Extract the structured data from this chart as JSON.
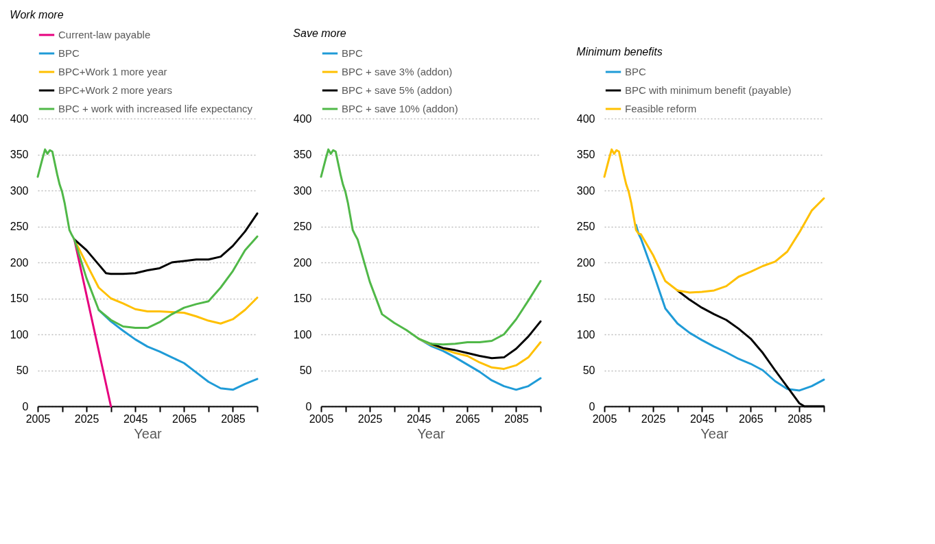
{
  "chart_data": [
    {
      "type": "line",
      "title": "Work more",
      "xlabel": "Year",
      "xlim": [
        2005,
        2095
      ],
      "xticks": [
        2005,
        {
          "value": 2015,
          "label": null
        },
        2025,
        {
          "value": 2035,
          "label": null
        },
        2045,
        {
          "value": 2055,
          "label": null
        },
        2065,
        {
          "value": 2075,
          "label": null
        },
        2085,
        {
          "value": 2095,
          "label": null
        }
      ],
      "ylim": [
        0,
        400
      ],
      "yticks": [
        0,
        50,
        100,
        150,
        200,
        250,
        300,
        350,
        400
      ],
      "grid": "y",
      "legend": "top",
      "marker": "none",
      "line_style": "solid",
      "series": [
        {
          "name": "Current-law payable",
          "color": "#e6007e",
          "x": [
            2020,
            2035
          ],
          "values": [
            232,
            0
          ]
        },
        {
          "name": "BPC",
          "color": "#1f9bd7",
          "x": [
            2030,
            2035,
            2040,
            2045,
            2050,
            2055,
            2060,
            2065,
            2070,
            2075,
            2080,
            2085,
            2090,
            2095
          ],
          "values": [
            134,
            118,
            105,
            93,
            83,
            76,
            68,
            60,
            47,
            34,
            25,
            23,
            31,
            38
          ]
        },
        {
          "name": "BPC+Work 1 more year",
          "color": "#ffc000",
          "x": [
            2020,
            2025,
            2030,
            2035,
            2040,
            2045,
            2050,
            2055,
            2060,
            2065,
            2070,
            2075,
            2080,
            2085,
            2090,
            2095
          ],
          "values": [
            232,
            198,
            165,
            150,
            143,
            135,
            132,
            132,
            131,
            130,
            125,
            119,
            115,
            121,
            134,
            151
          ]
        },
        {
          "name": "BPC+Work 2 more years",
          "color": "#000000",
          "x": [
            2020,
            2025,
            2030,
            2033,
            2035,
            2040,
            2045,
            2050,
            2055,
            2060,
            2065,
            2070,
            2075,
            2080,
            2085,
            2090,
            2095
          ],
          "values": [
            232,
            217,
            197,
            185,
            184,
            184,
            185,
            189,
            192,
            200,
            202,
            204,
            204,
            208,
            223,
            243,
            268
          ]
        },
        {
          "name": "BPC + work with increased life expectancy",
          "color": "#50b848",
          "x": [
            2005,
            2006,
            2007,
            2008,
            2009,
            2010,
            2011,
            2012,
            2013,
            2014,
            2015,
            2016,
            2017,
            2018,
            2019,
            2020,
            2025,
            2030,
            2035,
            2040,
            2045,
            2050,
            2055,
            2060,
            2065,
            2070,
            2075,
            2080,
            2085,
            2090,
            2095
          ],
          "values": [
            319,
            332,
            345,
            357,
            351,
            356,
            354,
            338,
            322,
            308,
            298,
            283,
            264,
            245,
            238,
            232,
            178,
            134,
            120,
            111,
            109,
            109,
            117,
            128,
            137,
            142,
            146,
            165,
            188,
            217,
            236
          ]
        }
      ]
    },
    {
      "type": "line",
      "title": "Save more",
      "xlabel": "Year",
      "xlim": [
        2005,
        2095
      ],
      "xticks": [
        2005,
        {
          "value": 2015,
          "label": null
        },
        2025,
        {
          "value": 2035,
          "label": null
        },
        2045,
        {
          "value": 2055,
          "label": null
        },
        2065,
        {
          "value": 2075,
          "label": null
        },
        2085,
        {
          "value": 2095,
          "label": null
        }
      ],
      "ylim": [
        0,
        400
      ],
      "yticks": [
        0,
        50,
        100,
        150,
        200,
        250,
        300,
        350,
        400
      ],
      "grid": "y",
      "legend": "top",
      "marker": "none",
      "line_style": "solid",
      "series": [
        {
          "name": "BPC",
          "color": "#1f9bd7",
          "x": [
            2045,
            2050,
            2055,
            2060,
            2065,
            2070,
            2075,
            2080,
            2085,
            2090,
            2095
          ],
          "values": [
            94,
            84,
            77,
            68,
            58,
            48,
            36,
            28,
            23,
            28,
            39
          ]
        },
        {
          "name": "BPC + save 3% (addon)",
          "color": "#ffc000",
          "x": [
            2045,
            2050,
            2055,
            2060,
            2065,
            2070,
            2075,
            2080,
            2085,
            2090,
            2095
          ],
          "values": [
            94,
            86,
            80,
            74,
            70,
            61,
            54,
            52,
            57,
            68,
            89
          ]
        },
        {
          "name": "BPC + save 5% (addon)",
          "color": "#000000",
          "x": [
            2050,
            2055,
            2060,
            2065,
            2070,
            2075,
            2080,
            2085,
            2090,
            2095
          ],
          "values": [
            87,
            81,
            78,
            74,
            70,
            67,
            68,
            80,
            97,
            118
          ]
        },
        {
          "name": "BPC + save 10% (addon)",
          "color": "#50b848",
          "x": [
            2005,
            2006,
            2007,
            2008,
            2009,
            2010,
            2011,
            2012,
            2013,
            2014,
            2015,
            2016,
            2017,
            2018,
            2019,
            2020,
            2025,
            2030,
            2035,
            2040,
            2045,
            2050,
            2055,
            2060,
            2065,
            2070,
            2075,
            2080,
            2085,
            2090,
            2095
          ],
          "values": [
            319,
            332,
            345,
            357,
            351,
            356,
            354,
            338,
            322,
            308,
            298,
            283,
            264,
            245,
            238,
            232,
            173,
            128,
            116,
            106,
            94,
            87,
            86,
            87,
            89,
            89,
            91,
            100,
            121,
            147,
            174
          ]
        }
      ]
    },
    {
      "type": "line",
      "title": "Minimum benefits",
      "xlabel": "Year",
      "xlim": [
        2005,
        2095
      ],
      "xticks": [
        2005,
        {
          "value": 2015,
          "label": null
        },
        2025,
        {
          "value": 2035,
          "label": null
        },
        2045,
        {
          "value": 2055,
          "label": null
        },
        2065,
        {
          "value": 2075,
          "label": null
        },
        2085,
        {
          "value": 2095,
          "label": null
        }
      ],
      "ylim": [
        0,
        400
      ],
      "yticks": [
        0,
        50,
        100,
        150,
        200,
        250,
        300,
        350,
        400
      ],
      "grid": "y",
      "legend": "top",
      "marker": "none",
      "line_style": "solid",
      "series": [
        {
          "name": "BPC",
          "color": "#1f9bd7",
          "x": [
            2018,
            2019,
            2020,
            2025,
            2030,
            2035,
            2040,
            2045,
            2050,
            2055,
            2060,
            2065,
            2070,
            2075,
            2080,
            2085,
            2090,
            2095
          ],
          "values": [
            252,
            240,
            233,
            186,
            136,
            115,
            102,
            92,
            83,
            75,
            66,
            59,
            50,
            35,
            24,
            22,
            28,
            37
          ]
        },
        {
          "name": "BPC with minimum benefit (payable)",
          "color": "#000000",
          "x": [
            2035,
            2040,
            2045,
            2050,
            2055,
            2060,
            2065,
            2070,
            2075,
            2080,
            2085,
            2087,
            2090,
            2095
          ],
          "values": [
            161,
            148,
            137,
            128,
            120,
            108,
            94,
            74,
            50,
            27,
            4,
            0,
            0,
            0
          ]
        },
        {
          "name": "Feasible reform",
          "color": "#ffc000",
          "x": [
            2005,
            2006,
            2007,
            2008,
            2009,
            2010,
            2011,
            2012,
            2013,
            2014,
            2015,
            2016,
            2017,
            2018,
            2019,
            2020,
            2025,
            2030,
            2035,
            2040,
            2045,
            2050,
            2055,
            2060,
            2065,
            2070,
            2075,
            2080,
            2085,
            2090,
            2095
          ],
          "values": [
            319,
            332,
            345,
            357,
            351,
            356,
            354,
            338,
            322,
            308,
            298,
            283,
            264,
            245,
            240,
            239,
            210,
            174,
            161,
            158,
            159,
            161,
            167,
            180,
            187,
            195,
            201,
            215,
            242,
            272,
            289
          ]
        }
      ]
    }
  ]
}
